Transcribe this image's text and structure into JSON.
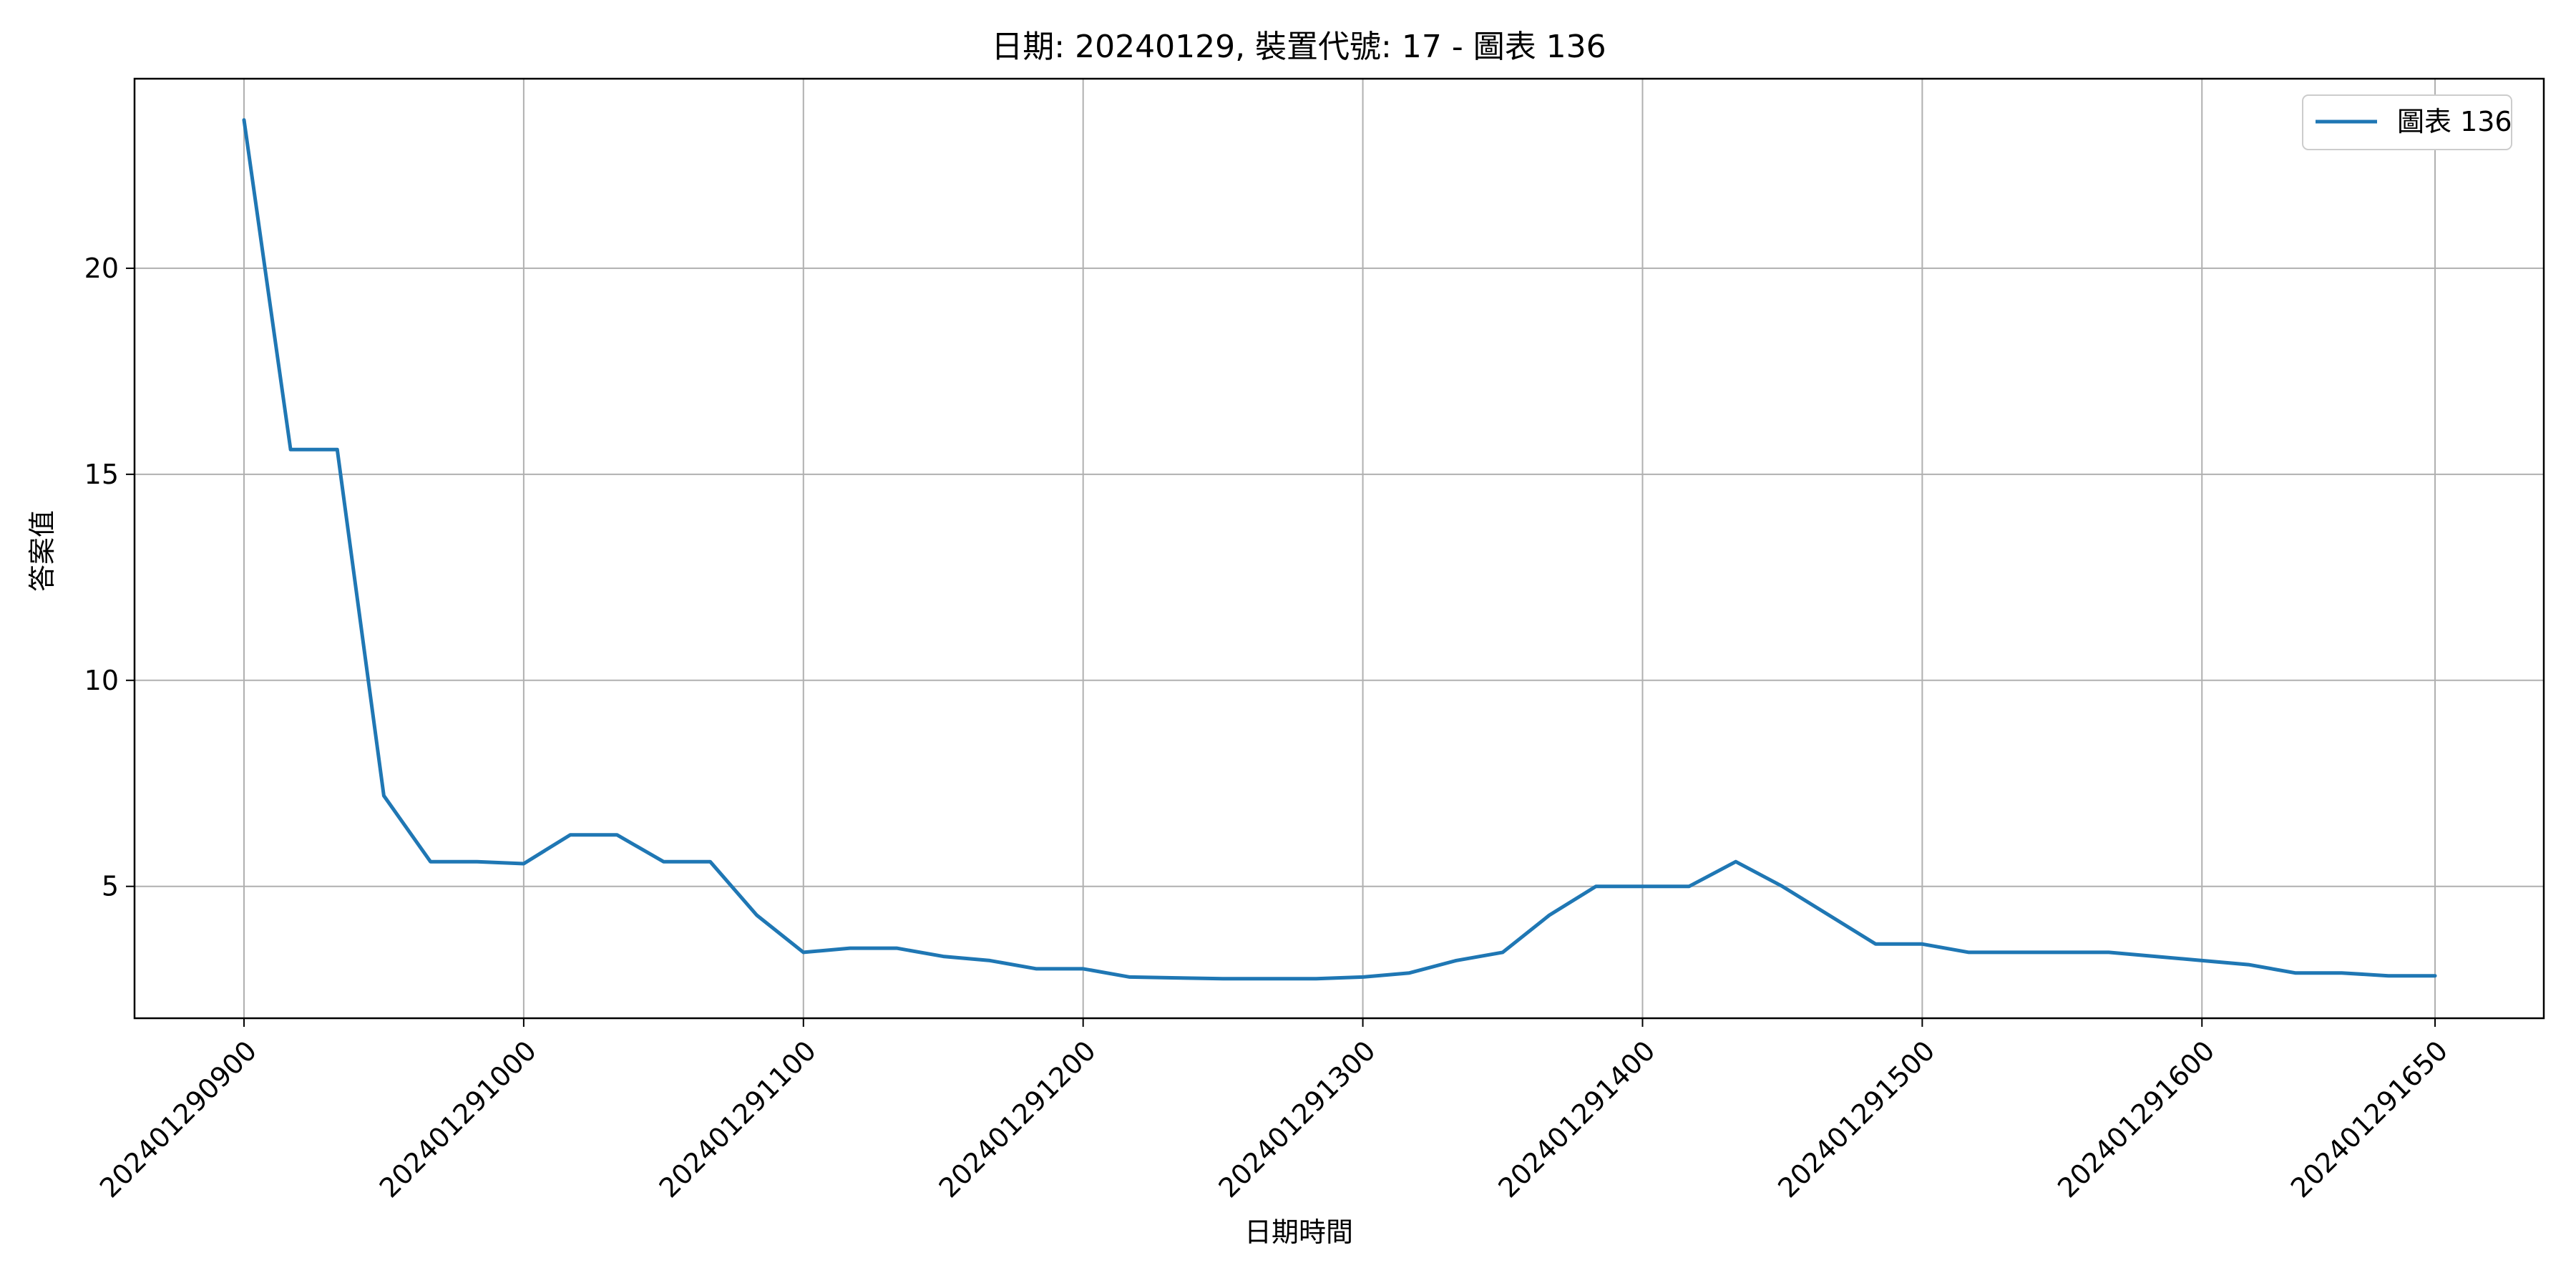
{
  "chart_data": {
    "type": "line",
    "title": "日期: 20240129, 裝置代號: 17 - 圖表 136",
    "xlabel": "日期時間",
    "ylabel": "答案值",
    "x_tick_labels": [
      "202401290900",
      "202401291000",
      "202401291100",
      "202401291200",
      "202401291300",
      "202401291400",
      "202401291500",
      "202401291600",
      "202401291650"
    ],
    "y_tick_labels": [
      "5",
      "10",
      "15",
      "20"
    ],
    "y_ticks": [
      5,
      10,
      15,
      20
    ],
    "ylim": [
      1.8,
      24.6
    ],
    "grid": true,
    "legend_position": "top-right",
    "series": [
      {
        "name": "圖表 136",
        "color": "#1f77b4",
        "x": [
          "09:00",
          "09:10",
          "09:20",
          "09:30",
          "09:40",
          "09:50",
          "10:00",
          "10:10",
          "10:20",
          "10:30",
          "10:40",
          "10:50",
          "11:00",
          "11:10",
          "11:20",
          "11:30",
          "11:40",
          "11:50",
          "12:00",
          "12:10",
          "12:20",
          "12:30",
          "12:40",
          "12:50",
          "13:00",
          "13:10",
          "13:20",
          "13:30",
          "13:40",
          "13:50",
          "14:00",
          "14:10",
          "14:20",
          "14:30",
          "14:40",
          "14:50",
          "15:00",
          "15:10",
          "15:20",
          "15:30",
          "15:40",
          "15:50",
          "16:00",
          "16:10",
          "16:20",
          "16:30",
          "16:40",
          "16:50"
        ],
        "values": [
          23.6,
          15.6,
          15.6,
          7.2,
          5.6,
          5.6,
          5.55,
          6.25,
          6.25,
          5.6,
          5.6,
          4.3,
          3.4,
          3.5,
          3.5,
          3.3,
          3.2,
          3.0,
          3.0,
          2.8,
          2.78,
          2.76,
          2.76,
          2.76,
          2.8,
          2.9,
          3.2,
          3.4,
          4.3,
          5.0,
          5.0,
          5.0,
          5.6,
          5.0,
          4.3,
          3.6,
          3.6,
          3.4,
          3.4,
          3.4,
          3.4,
          3.3,
          3.2,
          3.1,
          2.9,
          2.9,
          2.83,
          2.83
        ]
      }
    ]
  }
}
